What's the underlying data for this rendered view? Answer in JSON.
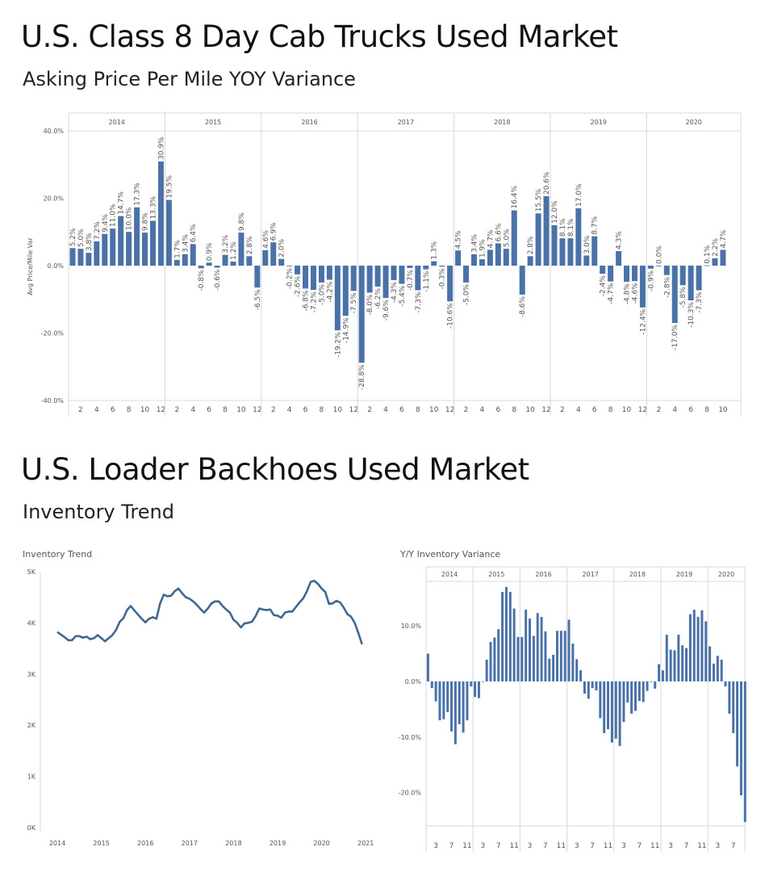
{
  "top": {
    "title": "U.S. Class 8 Day Cab Trucks Used Market",
    "subtitle": "Asking Price Per Mile YOY Variance"
  },
  "bottom": {
    "title": "U.S. Loader Backhoes Used Market",
    "subtitle": "Inventory Trend"
  },
  "colors": {
    "bar": "#4a72a8",
    "line": "#3f6791",
    "grid": "#d8d8d8"
  },
  "chart_data": [
    {
      "type": "bar",
      "ylabel": "Avg Price/Mile Var",
      "ylim": [
        -40,
        40
      ],
      "yticks": [
        "40.0%",
        "20.0%",
        "0.0%",
        "-20.0%",
        "-40.0%"
      ],
      "ytick_values": [
        40,
        20,
        0,
        -20,
        -40
      ],
      "grid": true,
      "years": [
        "2014",
        "2015",
        "2016",
        "2017",
        "2018",
        "2019",
        "2020"
      ],
      "x_tick_months": [
        2,
        4,
        6,
        8,
        10,
        12
      ],
      "values": [
        [
          5.2,
          5.0,
          3.8,
          7.2,
          9.4,
          11.0,
          14.7,
          10.0,
          17.3,
          9.8,
          13.3,
          30.9
        ],
        [
          19.5,
          1.7,
          3.4,
          6.4,
          -0.8,
          0.9,
          -0.6,
          3.2,
          1.2,
          9.8,
          2.8,
          -6.5
        ],
        [
          4.6,
          6.9,
          2.0,
          -0.2,
          -2.6,
          -6.8,
          -7.2,
          -5.0,
          -4.2,
          -19.2,
          -14.9,
          -7.5
        ],
        [
          -28.8,
          -8.0,
          -6.2,
          -9.6,
          -4.3,
          -5.4,
          -0.7,
          -7.3,
          -1.1,
          1.3,
          -0.3,
          -10.6
        ],
        [
          4.5,
          -5.0,
          3.4,
          1.9,
          4.7,
          6.6,
          5.0,
          16.4,
          -8.6,
          2.8,
          15.5,
          20.6
        ],
        [
          12.0,
          8.1,
          8.1,
          17.0,
          3.0,
          8.7,
          -2.4,
          -4.7,
          4.3,
          -4.8,
          -4.6,
          -12.4
        ],
        [
          -0.9,
          0.0,
          -2.8,
          -17.0,
          -5.8,
          -10.3,
          -7.3,
          0.1,
          2.2,
          4.7
        ]
      ]
    },
    {
      "type": "line",
      "title": "Inventory Trend",
      "ylim": [
        0,
        5000
      ],
      "yticks": [
        "5K",
        "4K",
        "3K",
        "2K",
        "1K",
        "0K"
      ],
      "ytick_values": [
        5000,
        4000,
        3000,
        2000,
        1000,
        0
      ],
      "xticks": [
        "2014",
        "2015",
        "2016",
        "2017",
        "2018",
        "2019",
        "2020",
        "2021"
      ],
      "values": [
        3820,
        3770,
        3720,
        3660,
        3660,
        3740,
        3740,
        3710,
        3730,
        3680,
        3700,
        3760,
        3700,
        3640,
        3700,
        3760,
        3860,
        4020,
        4090,
        4250,
        4330,
        4240,
        4160,
        4080,
        4010,
        4080,
        4110,
        4080,
        4380,
        4550,
        4520,
        4530,
        4620,
        4670,
        4580,
        4500,
        4470,
        4420,
        4350,
        4270,
        4200,
        4280,
        4380,
        4420,
        4420,
        4330,
        4260,
        4200,
        4060,
        4000,
        3910,
        3990,
        4000,
        4020,
        4130,
        4280,
        4260,
        4250,
        4260,
        4150,
        4140,
        4100,
        4200,
        4220,
        4220,
        4310,
        4400,
        4480,
        4620,
        4800,
        4820,
        4760,
        4670,
        4600,
        4370,
        4380,
        4430,
        4400,
        4300,
        4170,
        4120,
        4000,
        3800,
        3580
      ]
    },
    {
      "type": "bar",
      "title": "Y/Y Inventory Variance",
      "ylim": [
        -26,
        18
      ],
      "yticks": [
        "10.0%",
        "0.0%",
        "-10.0%",
        "-20.0%"
      ],
      "ytick_values": [
        10,
        0,
        -10,
        -20
      ],
      "years": [
        "2014",
        "2015",
        "2016",
        "2017",
        "2018",
        "2019",
        "2020"
      ],
      "x_tick_months": [
        3,
        7,
        11
      ],
      "values": [
        [
          5.0,
          -1.2,
          -3.6,
          -7.0,
          -6.8,
          -5.5,
          -9.0,
          -11.3,
          -7.7,
          -9.2,
          -7.0,
          -0.9
        ],
        [
          -2.8,
          -3.0,
          0,
          3.9,
          7.1,
          7.9,
          9.4,
          16.1,
          17.0,
          16.1,
          13.1,
          8.0
        ],
        [
          8.0,
          12.9,
          11.3,
          8.2,
          12.3,
          11.6,
          9.0,
          4.1,
          4.8,
          9.1,
          9.1,
          9.1
        ],
        [
          11.1,
          6.8,
          4.0,
          2.0,
          -2.2,
          -3.1,
          -1.2,
          -1.6,
          -6.6,
          -9.3,
          -8.6,
          -11.0
        ],
        [
          -10.3,
          -11.6,
          -7.3,
          -3.8,
          -5.8,
          -5.3,
          -3.5,
          -3.7,
          -1.7,
          0,
          -1.3,
          3.1
        ],
        [
          2.0,
          8.4,
          5.7,
          5.6,
          8.4,
          6.5,
          6.0,
          12.1,
          12.9,
          11.6,
          12.8,
          10.8
        ],
        [
          6.3,
          3.2,
          4.6,
          3.9,
          -0.9,
          -5.8,
          -9.3,
          -15.3,
          -20.5,
          -25.3
        ]
      ]
    }
  ]
}
